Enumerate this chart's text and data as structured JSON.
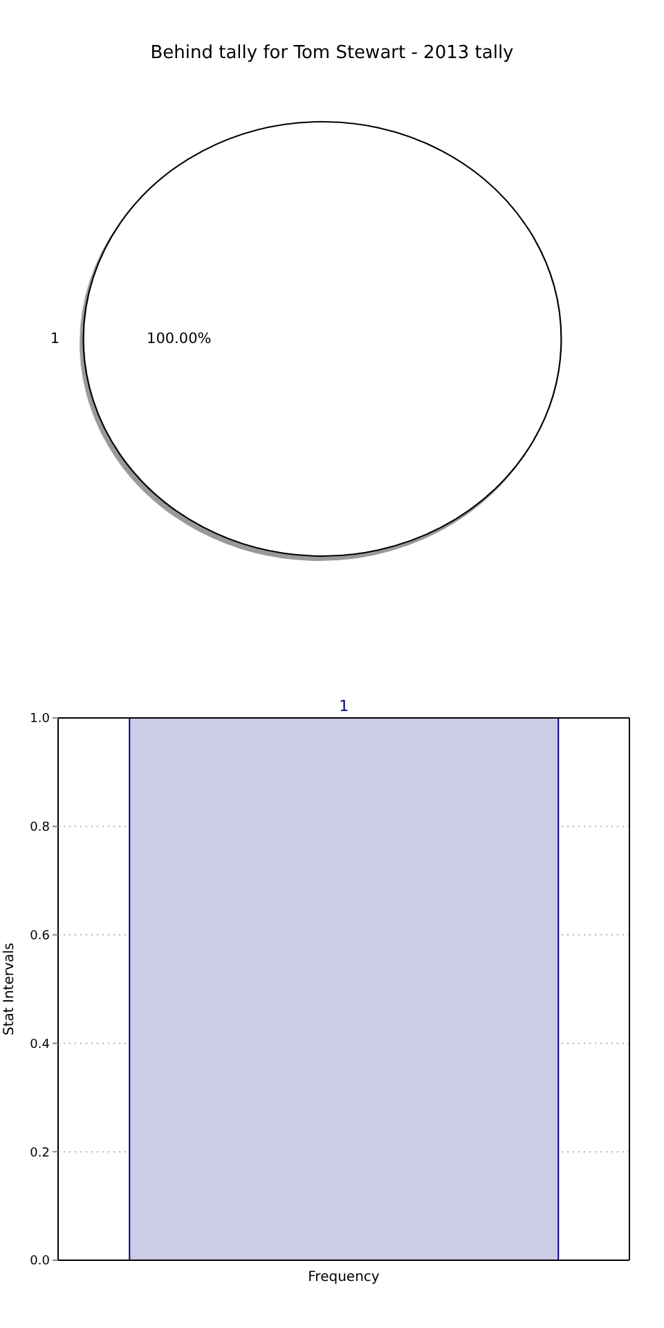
{
  "chart_data": [
    {
      "type": "pie",
      "title": "Behind tally for Tom Stewart - 2013 tally",
      "categories": [
        "1"
      ],
      "values": [
        100
      ],
      "colors": [
        "#ffffff"
      ],
      "value_labels": [
        "100.00%"
      ]
    },
    {
      "type": "bar",
      "categories": [
        "Frequency"
      ],
      "values": [
        1
      ],
      "color": "#cccce6",
      "ylabel": "Stat Intervals",
      "ylim": [
        0,
        1
      ],
      "yticks": [
        {
          "value": 0,
          "label": "0.0"
        },
        {
          "value": 0.2,
          "label": "0.2"
        },
        {
          "value": 0.4,
          "label": "0.4"
        },
        {
          "value": 0.6,
          "label": "0.6"
        },
        {
          "value": 0.8,
          "label": "0.8"
        },
        {
          "value": 1,
          "label": "1.0"
        }
      ],
      "grid": "y",
      "data_labels": true
    }
  ]
}
